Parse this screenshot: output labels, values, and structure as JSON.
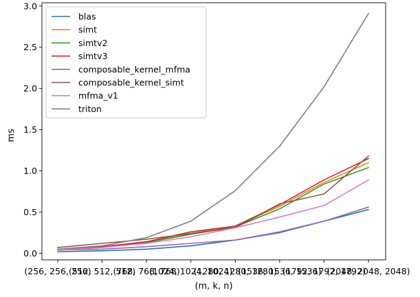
{
  "chart_data": {
    "type": "line",
    "xlabel": "(m, k, n)",
    "ylabel": "ms",
    "categories": [
      "(256, 256, 256)",
      "(512, 512, 512)",
      "(768, 768, 768)",
      "(1024, 1024, 1024)",
      "(1280, 1280, 1280)",
      "(1536, 1536, 1536)",
      "(1792, 1792, 1792)",
      "(2048, 2048, 2048)"
    ],
    "ylim": [
      -0.08,
      3.04
    ],
    "yticks": [
      0.0,
      0.5,
      1.0,
      1.5,
      2.0,
      2.5,
      3.0
    ],
    "ytick_labels": [
      "0.0",
      "0.5",
      "1.0",
      "1.5",
      "2.0",
      "2.5",
      "3.0"
    ],
    "legend_position": "upper-left",
    "series": [
      {
        "name": "blas",
        "color": "#1f77b4",
        "values": [
          0.02,
          0.03,
          0.05,
          0.09,
          0.16,
          0.25,
          0.39,
          0.53
        ]
      },
      {
        "name": "simt",
        "color": "#ff7f0e",
        "values": [
          0.04,
          0.08,
          0.13,
          0.24,
          0.33,
          0.57,
          0.86,
          1.1
        ]
      },
      {
        "name": "simtv2",
        "color": "#2ca02c",
        "values": [
          0.04,
          0.07,
          0.13,
          0.23,
          0.32,
          0.54,
          0.84,
          1.04
        ]
      },
      {
        "name": "simtv3",
        "color": "#d62728",
        "values": [
          0.04,
          0.08,
          0.14,
          0.26,
          0.33,
          0.59,
          0.89,
          1.15
        ]
      },
      {
        "name": "composable_kernel_mfma",
        "color": "#9467bd",
        "values": [
          0.04,
          0.05,
          0.08,
          0.12,
          0.16,
          0.26,
          0.39,
          0.56
        ]
      },
      {
        "name": "composable_kernel_simt",
        "color": "#8c564b",
        "values": [
          0.07,
          0.12,
          0.17,
          0.24,
          0.31,
          0.6,
          0.72,
          1.18
        ]
      },
      {
        "name": "mfma_v1",
        "color": "#e377c2",
        "values": [
          0.04,
          0.07,
          0.12,
          0.2,
          0.31,
          0.44,
          0.58,
          0.89
        ]
      },
      {
        "name": "triton",
        "color": "#7f7f7f",
        "values": [
          0.05,
          0.09,
          0.19,
          0.39,
          0.76,
          1.3,
          2.02,
          2.91
        ]
      }
    ]
  }
}
